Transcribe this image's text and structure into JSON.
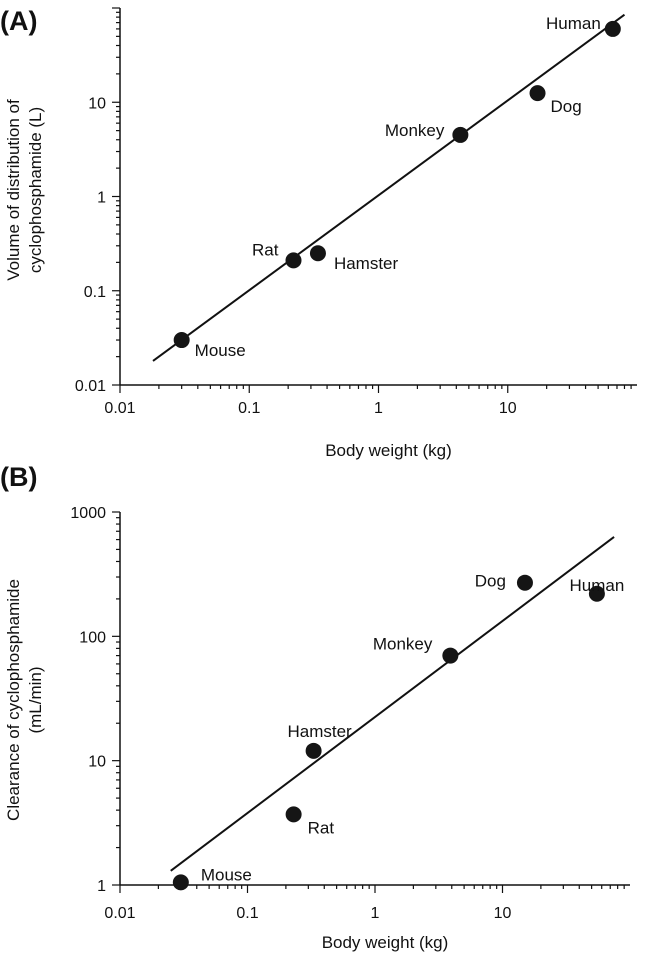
{
  "chart_data": [
    {
      "panel": "(A)",
      "type": "scatter",
      "xscale": "log",
      "yscale": "log",
      "xlim": [
        0.01,
        100
      ],
      "ylim": [
        0.01,
        100
      ],
      "xlabel": "Body weight (kg)",
      "ylabel": [
        "Volume of distribution of",
        "cyclophosphamide (L)"
      ],
      "xticks": [
        {
          "v": 0.01,
          "label": "0.01"
        },
        {
          "v": 0.1,
          "label": "0.1"
        },
        {
          "v": 1,
          "label": "1"
        },
        {
          "v": 10,
          "label": "10"
        }
      ],
      "yticks": [
        {
          "v": 0.01,
          "label": "0.01"
        },
        {
          "v": 0.1,
          "label": "0.1"
        },
        {
          "v": 1,
          "label": "1"
        },
        {
          "v": 10,
          "label": "10"
        }
      ],
      "points": [
        {
          "name": "Mouse",
          "x": 0.03,
          "y": 0.03
        },
        {
          "name": "Rat",
          "x": 0.22,
          "y": 0.21
        },
        {
          "name": "Hamster",
          "x": 0.34,
          "y": 0.25
        },
        {
          "name": "Monkey",
          "x": 4.3,
          "y": 4.5
        },
        {
          "name": "Dog",
          "x": 17,
          "y": 12.5
        },
        {
          "name": "Human",
          "x": 65,
          "y": 60
        }
      ],
      "fit": [
        {
          "x": 0.018,
          "y": 0.018
        },
        {
          "x": 80,
          "y": 85
        }
      ]
    },
    {
      "panel": "(B)",
      "type": "scatter",
      "xscale": "log",
      "yscale": "log",
      "xlim": [
        0.01,
        100
      ],
      "ylim": [
        1,
        1000
      ],
      "xlabel": "Body weight (kg)",
      "ylabel": [
        "Clearance of cyclophosphamide",
        "(mL/min)"
      ],
      "xticks": [
        {
          "v": 0.01,
          "label": "0.01"
        },
        {
          "v": 0.1,
          "label": "0.1"
        },
        {
          "v": 1,
          "label": "1"
        },
        {
          "v": 10,
          "label": "10"
        }
      ],
      "yticks": [
        {
          "v": 1,
          "label": "1"
        },
        {
          "v": 10,
          "label": "10"
        },
        {
          "v": 100,
          "label": "100"
        },
        {
          "v": 1000,
          "label": "1000"
        }
      ],
      "points": [
        {
          "name": "Mouse",
          "x": 0.03,
          "y": 1.05
        },
        {
          "name": "Rat",
          "x": 0.23,
          "y": 3.7
        },
        {
          "name": "Hamster",
          "x": 0.33,
          "y": 12
        },
        {
          "name": "Monkey",
          "x": 3.9,
          "y": 70
        },
        {
          "name": "Dog",
          "x": 15,
          "y": 270
        },
        {
          "name": "Human",
          "x": 55,
          "y": 220
        }
      ],
      "fit": [
        {
          "x": 0.025,
          "y": 1.3
        },
        {
          "x": 75,
          "y": 630
        }
      ]
    }
  ]
}
